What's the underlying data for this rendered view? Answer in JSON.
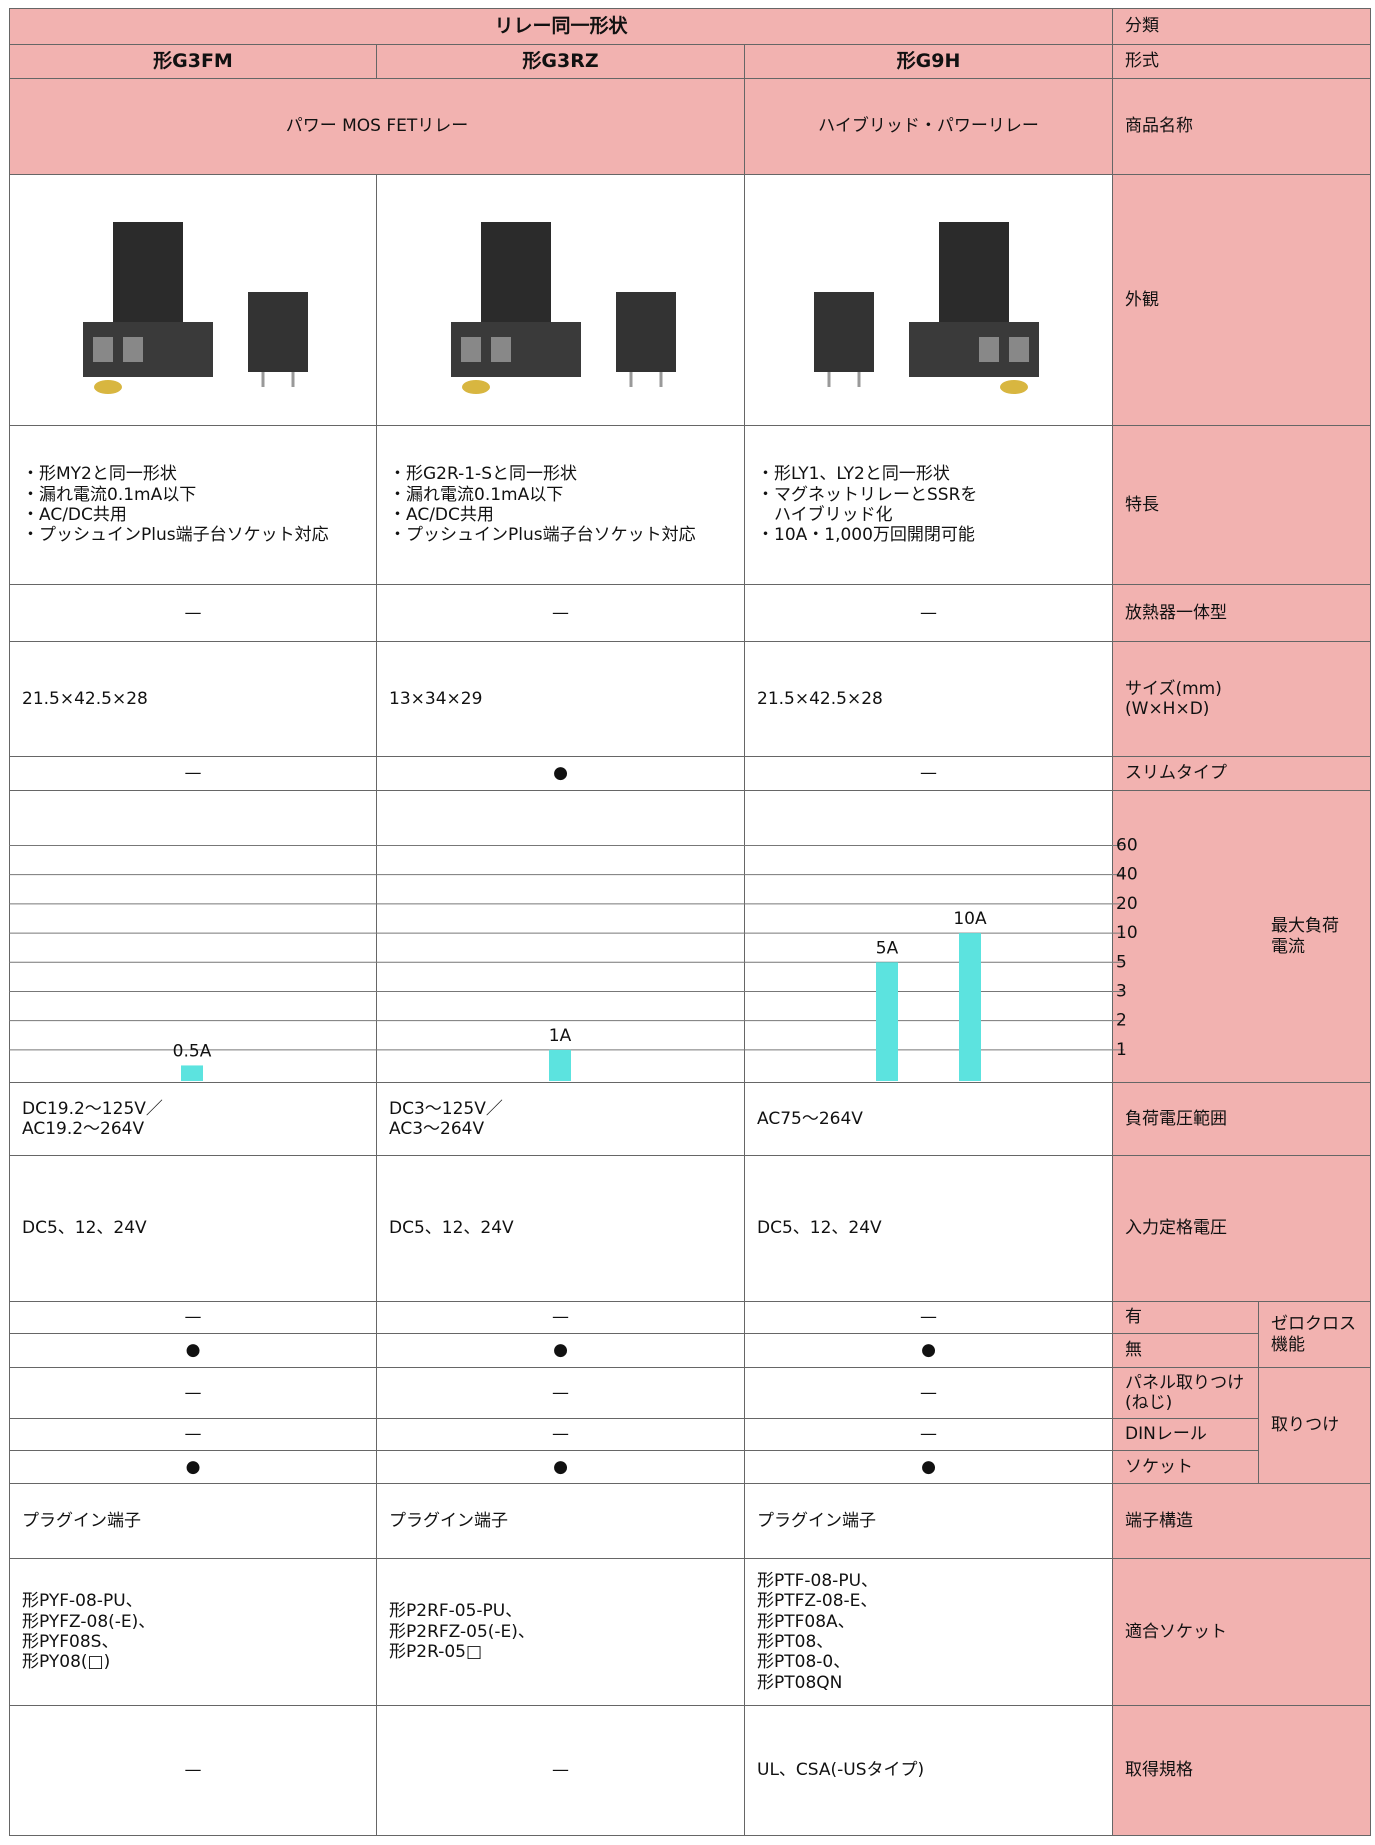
{
  "header": {
    "group": "リレー同一形状",
    "group_label": "分類",
    "model_label": "形式",
    "models": [
      "形G3FM",
      "形G3RZ",
      "形G9H"
    ]
  },
  "product_name": {
    "label": "商品名称",
    "cells": [
      "パワー MOS FETリレー",
      "ハイブリッド・パワーリレー"
    ]
  },
  "appearance": {
    "label": "外観"
  },
  "features": {
    "label": "特長",
    "cells": [
      [
        "・形MY2と同一形状",
        "・漏れ電流0.1mA以下",
        "・AC/DC共用",
        "・プッシュインPlus端子台ソケット対応"
      ],
      [
        "・形G2R-1-Sと同一形状",
        "・漏れ電流0.1mA以下",
        "・AC/DC共用",
        "・プッシュインPlus端子台ソケット対応"
      ],
      [
        "・形LY1、LY2と同一形状",
        "・マグネットリレーとSSRを",
        "　ハイブリッド化",
        "・10A・1,000万回開閉可能"
      ]
    ]
  },
  "heat_sink": {
    "label": "放熱器一体型",
    "cells": [
      "—",
      "—",
      "—"
    ]
  },
  "size": {
    "label": "サイズ(mm)\n(W×H×D)",
    "cells": [
      "21.5×42.5×28",
      "13×34×29",
      "21.5×42.5×28"
    ]
  },
  "slim": {
    "label": "スリムタイプ",
    "cells": [
      "—",
      "●",
      "—"
    ]
  },
  "chart_data": {
    "type": "bar",
    "title": "最大負荷\n電流",
    "values": [
      0.5,
      1,
      5,
      10
    ],
    "value_labels": [
      "0.5A",
      "1A",
      "5A",
      "10A"
    ],
    "color": "#5ce3df",
    "ylim": [
      0,
      60
    ],
    "yticks": [
      1,
      2,
      3,
      5,
      10,
      20,
      40,
      60
    ],
    "grid": true
  },
  "load_voltage": {
    "label": "負荷電圧範囲",
    "cells": [
      "DC19.2～125V／\nAC19.2～264V",
      "DC3～125V／\nAC3～264V",
      "AC75～264V"
    ]
  },
  "input_voltage": {
    "label": "入力定格電圧",
    "cells": [
      "DC5、12、24V",
      "DC5、12、24V",
      "DC5、12、24V"
    ]
  },
  "zero_cross": {
    "label": "ゼロクロス\n機能",
    "rows": [
      {
        "label": "有",
        "cells": [
          "—",
          "—",
          "—"
        ]
      },
      {
        "label": "無",
        "cells": [
          "●",
          "●",
          "●"
        ]
      }
    ]
  },
  "mounting": {
    "label": "取りつけ",
    "rows": [
      {
        "label": "パネル取りつけ\n(ねじ)",
        "cells": [
          "—",
          "—",
          "—"
        ]
      },
      {
        "label": "DINレール",
        "cells": [
          "—",
          "—",
          "—"
        ]
      },
      {
        "label": "ソケット",
        "cells": [
          "●",
          "●",
          "●"
        ]
      }
    ]
  },
  "terminal": {
    "label": "端子構造",
    "cells": [
      "プラグイン端子",
      "プラグイン端子",
      "プラグイン端子"
    ]
  },
  "sockets": {
    "label": "適合ソケット",
    "cells": [
      [
        "形PYF-08-PU、",
        "形PYFZ-08(-E)、",
        "形PYF08S、",
        "形PY08(□)"
      ],
      [
        "形P2RF-05-PU、",
        "形P2RFZ-05(-E)、",
        "形P2R-05□"
      ],
      [
        "形PTF-08-PU、",
        "形PTFZ-08-E、",
        "形PTF08A、",
        "形PT08、",
        "形PT08-0、",
        "形PT08QN"
      ]
    ]
  },
  "standards": {
    "label": "取得規格",
    "cells": [
      "—",
      "—",
      "UL、CSA(-USタイプ)"
    ]
  }
}
